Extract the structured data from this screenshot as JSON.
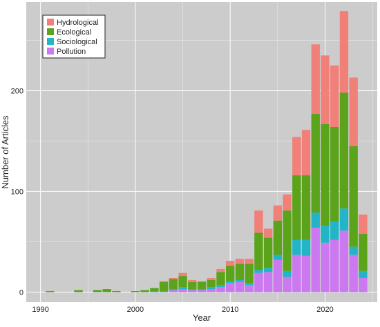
{
  "chart_data": {
    "type": "bar",
    "stacked": true,
    "title": "",
    "xlabel": "Year",
    "ylabel": "Number of Articles",
    "xlim": [
      1988.5,
      2025.5
    ],
    "ylim": [
      -10,
      288
    ],
    "xticks": [
      1990,
      2000,
      2010,
      2020
    ],
    "yticks": [
      0,
      100,
      200
    ],
    "grid": true,
    "legend_position": "top-left",
    "background_color": "#cccccc",
    "series_order_bottom_to_top": [
      "Pollution",
      "Sociological",
      "Ecological",
      "Hydrological"
    ],
    "legend_order": [
      "Hydrological",
      "Ecological",
      "Sociological",
      "Pollution"
    ],
    "colors": {
      "Hydrological": "#f08078",
      "Ecological": "#5aa31a",
      "Sociological": "#22b5c8",
      "Pollution": "#cc78f0"
    },
    "x": [
      1991,
      1994,
      1996,
      1997,
      1998,
      2000,
      2001,
      2002,
      2003,
      2004,
      2005,
      2006,
      2007,
      2008,
      2009,
      2010,
      2011,
      2012,
      2013,
      2014,
      2015,
      2016,
      2017,
      2018,
      2019,
      2020,
      2021,
      2022,
      2023,
      2024
    ],
    "series": [
      {
        "name": "Pollution",
        "values": [
          0,
          0,
          0,
          0,
          0,
          0,
          0,
          0,
          0,
          2,
          3,
          2,
          2,
          3,
          5,
          9,
          10,
          7,
          19,
          20,
          32,
          15,
          37,
          36,
          64,
          49,
          52,
          61,
          37,
          14
        ]
      },
      {
        "name": "Sociological",
        "values": [
          0,
          0,
          0,
          0,
          0,
          0,
          0,
          1,
          1,
          1,
          2,
          1,
          1,
          2,
          2,
          2,
          2,
          2,
          3,
          4,
          5,
          6,
          15,
          16,
          15,
          17,
          18,
          22,
          8,
          7
        ]
      },
      {
        "name": "Ecological",
        "values": [
          1,
          2,
          2,
          3,
          1,
          1,
          2,
          3,
          9,
          10,
          11,
          7,
          7,
          7,
          13,
          15,
          16,
          19,
          37,
          30,
          34,
          60,
          64,
          64,
          98,
          101,
          94,
          115,
          100,
          37
        ]
      },
      {
        "name": "Hydrological",
        "values": [
          0,
          0,
          0,
          0,
          0,
          0,
          0,
          0,
          1,
          1,
          3,
          2,
          1,
          2,
          3,
          5,
          5,
          5,
          22,
          9,
          15,
          16,
          38,
          45,
          69,
          68,
          61,
          81,
          68,
          19
        ]
      }
    ]
  }
}
